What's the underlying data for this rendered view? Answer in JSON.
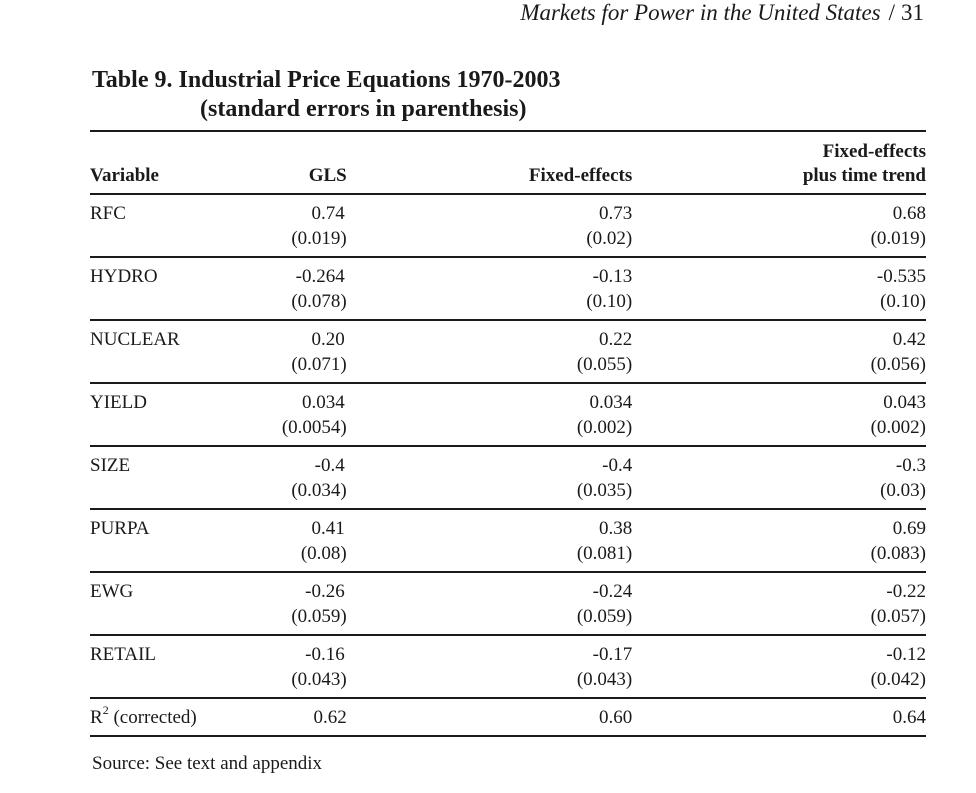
{
  "running_head": {
    "title": "Markets for Power in the United States",
    "separator": "/",
    "page": "31"
  },
  "table": {
    "title_line1": "Table 9.  Industrial Price Equations 1970-2003",
    "title_line2": "(standard errors in parenthesis)",
    "headers": {
      "variable": "Variable",
      "gls": "GLS",
      "fixed_effects": "Fixed-effects",
      "fixed_effects_trend_line1": "Fixed-effects",
      "fixed_effects_trend_line2": "plus time trend"
    },
    "rows": [
      {
        "variable": "RFC",
        "gls": "0.74",
        "gls_se": "(0.019)",
        "fe": "0.73",
        "fe_se": "(0.02)",
        "fet": "0.68",
        "fet_se": "(0.019)"
      },
      {
        "variable": "HYDRO",
        "gls": "-0.264",
        "gls_se": "(0.078)",
        "fe": "-0.13",
        "fe_se": "(0.10)",
        "fet": "-0.535",
        "fet_se": "(0.10)"
      },
      {
        "variable": "NUCLEAR",
        "gls": "0.20",
        "gls_se": "(0.071)",
        "fe": "0.22",
        "fe_se": "(0.055)",
        "fet": "0.42",
        "fet_se": "(0.056)"
      },
      {
        "variable": "YIELD",
        "gls": "0.034",
        "gls_se": "(0.0054)",
        "fe": "0.034",
        "fe_se": "(0.002)",
        "fet": "0.043",
        "fet_se": "(0.002)"
      },
      {
        "variable": "SIZE",
        "gls": "-0.4",
        "gls_se": "(0.034)",
        "fe": "-0.4",
        "fe_se": "(0.035)",
        "fet": "-0.3",
        "fet_se": "(0.03)"
      },
      {
        "variable": "PURPA",
        "gls": "0.41",
        "gls_se": "(0.08)",
        "fe": "0.38",
        "fe_se": "(0.081)",
        "fet": "0.69",
        "fet_se": "(0.083)"
      },
      {
        "variable": "EWG",
        "gls": "-0.26",
        "gls_se": "(0.059)",
        "fe": "-0.24",
        "fe_se": "(0.059)",
        "fet": "-0.22",
        "fet_se": "(0.057)"
      },
      {
        "variable": "RETAIL",
        "gls": "-0.16",
        "gls_se": "(0.043)",
        "fe": "-0.17",
        "fe_se": "(0.043)",
        "fet": "-0.12",
        "fet_se": "(0.042)"
      }
    ],
    "r2_row": {
      "label_prefix": "R",
      "label_sup": "2",
      "label_suffix": " (corrected)",
      "gls": "0.62",
      "fe": "0.60",
      "fet": "0.64"
    }
  },
  "source_note": "Source:  See text and appendix"
}
